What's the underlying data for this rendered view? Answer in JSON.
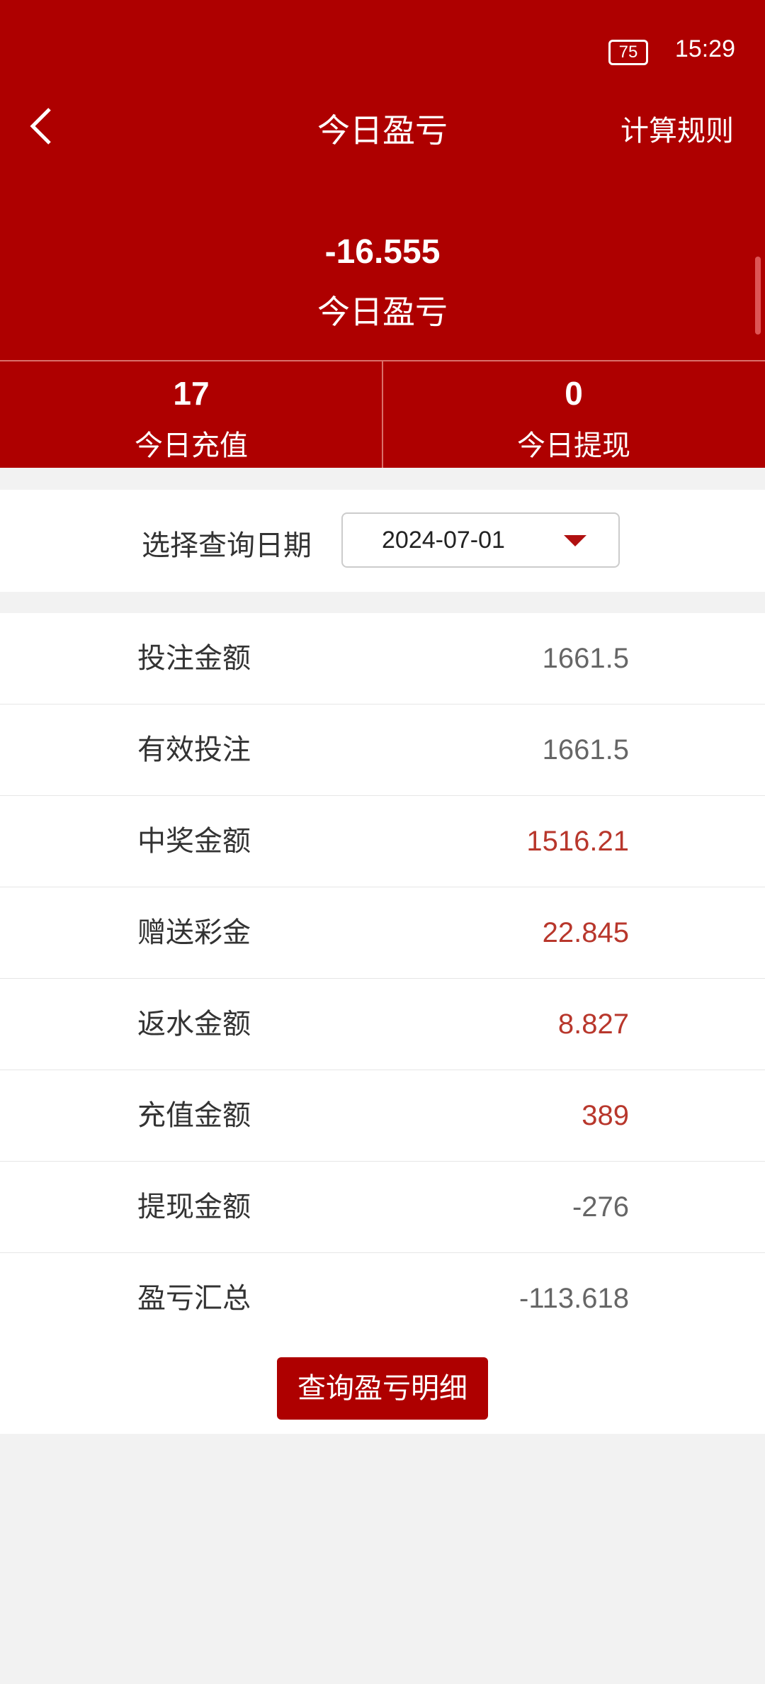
{
  "status_bar": {
    "time": "15:29",
    "battery": "75"
  },
  "header": {
    "title": "今日盈亏",
    "rule_link": "计算规则"
  },
  "summary": {
    "value": "-16.555",
    "label": "今日盈亏"
  },
  "stats": [
    {
      "value": "17",
      "label": "今日充值"
    },
    {
      "value": "0",
      "label": "今日提现"
    }
  ],
  "date_filter": {
    "label": "选择查询日期",
    "value": "2024-07-01"
  },
  "rows": [
    {
      "label": "投注金额",
      "value": "1661.5",
      "color": "#666666"
    },
    {
      "label": "有效投注",
      "value": "1661.5",
      "color": "#666666"
    },
    {
      "label": "中奖金额",
      "value": "1516.21",
      "color": "#b8372c"
    },
    {
      "label": "赠送彩金",
      "value": "22.845",
      "color": "#b8372c"
    },
    {
      "label": "返水金额",
      "value": "8.827",
      "color": "#b8372c"
    },
    {
      "label": "充值金额",
      "value": "389",
      "color": "#b8372c"
    },
    {
      "label": "提现金额",
      "value": "-276",
      "color": "#666666"
    },
    {
      "label": "盈亏汇总",
      "value": "-113.618",
      "color": "#666666"
    }
  ],
  "button": "查询盈亏明细"
}
